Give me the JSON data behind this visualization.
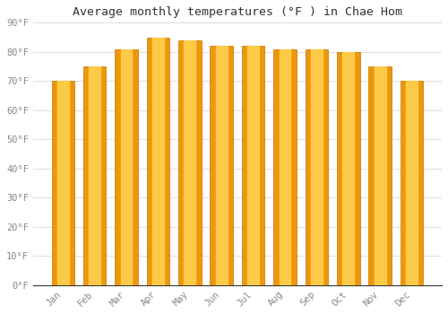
{
  "title": "Average monthly temperatures (°F ) in Chae Hom",
  "months": [
    "Jan",
    "Feb",
    "Mar",
    "Apr",
    "May",
    "Jun",
    "Jul",
    "Aug",
    "Sep",
    "Oct",
    "Nov",
    "Dec"
  ],
  "values": [
    70,
    75,
    81,
    85,
    84,
    82,
    82,
    81,
    81,
    80,
    75,
    70
  ],
  "bar_color_center": "#FFD050",
  "bar_color_edge": "#F0960A",
  "background_color": "#FFFFFF",
  "grid_color": "#DDDDDD",
  "ylim": [
    0,
    90
  ],
  "yticks": [
    0,
    10,
    20,
    30,
    40,
    50,
    60,
    70,
    80,
    90
  ],
  "ytick_labels": [
    "0°F",
    "10°F",
    "20°F",
    "30°F",
    "40°F",
    "50°F",
    "60°F",
    "70°F",
    "80°F",
    "90°F"
  ],
  "title_fontsize": 9.5,
  "tick_fontsize": 7.5,
  "font_family": "monospace",
  "bar_width": 0.72
}
